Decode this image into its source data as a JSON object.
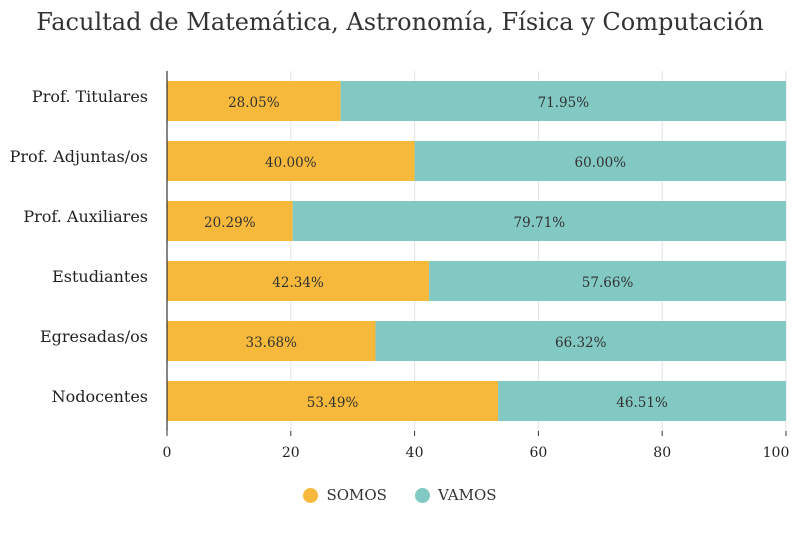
{
  "colors": {
    "somos": "#f6b93b",
    "vamos": "#82c9c4",
    "grid": "#e3e3e3",
    "axis": "#333333"
  },
  "chart_data": {
    "type": "bar",
    "orientation": "horizontal",
    "stacked": true,
    "title": "Facultad de Matemática, Astronomía, Física y Computación",
    "categories": [
      "Prof. Titulares",
      "Prof. Adjuntas/os",
      "Prof. Auxiliares",
      "Estudiantes",
      "Egresadas/os",
      "Nodocentes"
    ],
    "series": [
      {
        "name": "SOMOS",
        "values": [
          28.05,
          40.0,
          20.29,
          42.34,
          33.68,
          53.49
        ],
        "labels": [
          "28.05%",
          "40.00%",
          "20.29%",
          "42.34%",
          "33.68%",
          "53.49%"
        ]
      },
      {
        "name": "VAMOS",
        "values": [
          71.95,
          60.0,
          79.71,
          57.66,
          66.32,
          46.51
        ],
        "labels": [
          "71.95%",
          "60.00%",
          "79.71%",
          "57.66%",
          "66.32%",
          "46.51%"
        ]
      }
    ],
    "xlim": [
      0,
      100
    ],
    "xticks": [
      0,
      20,
      40,
      60,
      80,
      100
    ],
    "xtick_labels": [
      "0",
      "20",
      "40",
      "60",
      "80",
      "100"
    ],
    "grid": true,
    "legend": "bottom-center"
  }
}
